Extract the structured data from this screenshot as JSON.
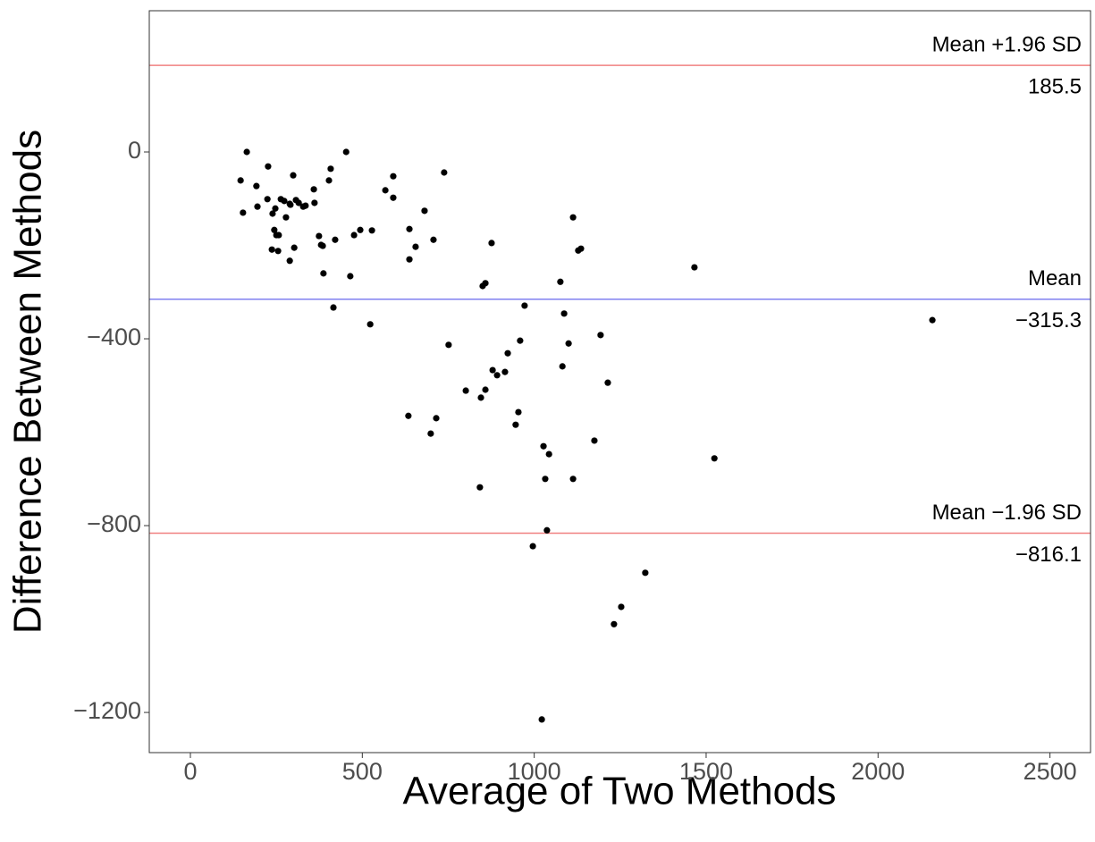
{
  "chart_data": {
    "type": "scatter",
    "x_label": "Average of Two Methods",
    "y_label": "Difference Between Methods",
    "xlim": [
      -119.6,
      2618
    ],
    "ylim": [
      -1286,
      302.4
    ],
    "xticks": [
      0,
      500,
      1000,
      1500,
      2000,
      2500
    ],
    "yticks": [
      {
        "value": -1200,
        "label": "−1200"
      },
      {
        "value": -800,
        "label": "−800"
      },
      {
        "value": -400,
        "label": "−400"
      },
      0
    ],
    "grid": false,
    "color": "#000000",
    "x": [
      146,
      153,
      164,
      192,
      195,
      226,
      224,
      237,
      239,
      244,
      247,
      250,
      257,
      255,
      263,
      273,
      278,
      289,
      291,
      289,
      299,
      302,
      307,
      315,
      328,
      335,
      359,
      361,
      374,
      380,
      385,
      387,
      403,
      408,
      421,
      416,
      453,
      465,
      476,
      494,
      523,
      528,
      567,
      590,
      590,
      637,
      637,
      634,
      655,
      681,
      699,
      707,
      715,
      738,
      751,
      801,
      842,
      845,
      850,
      858,
      858,
      876,
      879,
      892,
      915,
      923,
      946,
      954,
      959,
      972,
      996,
      1022,
      1027,
      1032,
      1037,
      1043,
      1076,
      1082,
      1087,
      1100,
      1113,
      1113,
      1128,
      1136,
      1175,
      1193,
      1214,
      1232,
      1253,
      1323,
      1466,
      1524,
      2158
    ],
    "y": [
      -61,
      -130,
      0,
      -73,
      -117,
      -31,
      -101,
      -209,
      -132,
      -167,
      -121,
      -178,
      -178,
      -212,
      -101,
      -105,
      -140,
      -111,
      -113,
      -233,
      -50,
      -205,
      -103,
      -109,
      -117,
      -115,
      -80,
      -109,
      -180,
      -199,
      -201,
      -260,
      -61,
      -36,
      -188,
      -333,
      0,
      -266,
      -178,
      -167,
      -369,
      -168,
      -82,
      -52,
      -98,
      -165,
      -230,
      -565,
      -203,
      -126,
      -603,
      -188,
      -570,
      -44,
      -413,
      -511,
      -718,
      -526,
      -287,
      -281,
      -509,
      -195,
      -467,
      -478,
      -471,
      -431,
      -584,
      -557,
      -404,
      -329,
      -844,
      -1215,
      -630,
      -700,
      -810,
      -647,
      -278,
      -459,
      -346,
      -410,
      -140,
      -700,
      -211,
      -207,
      -618,
      -392,
      -494,
      -1011,
      -974,
      -901,
      -247,
      -656,
      -360
    ],
    "hlines": [
      {
        "label": "Mean +1.96 SD",
        "value": 185.5,
        "value_label": "185.5",
        "color": "#f08080"
      },
      {
        "label": "Mean",
        "value": -315.3,
        "value_label": "−315.3",
        "color": "#8080f0"
      },
      {
        "label": "Mean −1.96 SD",
        "value": -816.1,
        "value_label": "−816.1",
        "color": "#f08080"
      }
    ]
  }
}
